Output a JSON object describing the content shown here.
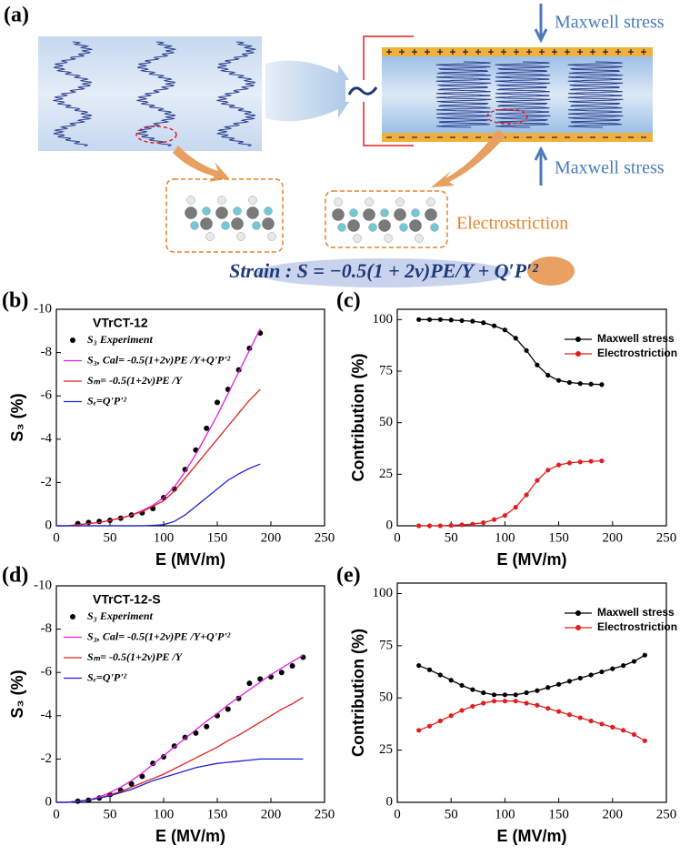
{
  "diagram": {
    "label": "(a)",
    "top_stress": "Maxwell stress",
    "bottom_stress": "Maxwell stress",
    "electrostriction": "Electrostriction",
    "equation": "Strain : S = −0.5(1 + 2ν)PE/Y + Q′P′²"
  },
  "chart_data": [
    {
      "type": "line",
      "panel_label": "(b)",
      "annotation": "VTrCT-12",
      "xlabel": "E (MV/m)",
      "ylabel": "S₃ (%)",
      "xlim": [
        0,
        250
      ],
      "xticks": [
        0,
        50,
        100,
        150,
        200,
        250
      ],
      "ylim": [
        0,
        -10
      ],
      "yticks": [
        0,
        -2,
        -4,
        -6,
        -8,
        -10
      ],
      "legend": "upper left",
      "series": [
        {
          "name": "S₃ Experiment",
          "mode": "markers",
          "color": "#000000",
          "x": [
            20,
            30,
            40,
            50,
            60,
            70,
            80,
            90,
            100,
            110,
            120,
            130,
            140,
            150,
            160,
            170,
            180,
            190
          ],
          "values": [
            -0.1,
            -0.15,
            -0.2,
            -0.25,
            -0.35,
            -0.5,
            -0.6,
            -0.8,
            -1.3,
            -1.7,
            -2.6,
            -3.5,
            -4.5,
            -5.7,
            -6.3,
            -7.2,
            -8.2,
            -8.9
          ]
        },
        {
          "name": "S₃, Cal= -0.5(1+2ν)PE /Y+Q'P'²",
          "mode": "lines",
          "color": "#e020e0",
          "x": [
            0,
            10,
            20,
            30,
            40,
            50,
            60,
            70,
            80,
            90,
            100,
            110,
            120,
            130,
            140,
            150,
            160,
            170,
            180,
            190
          ],
          "values": [
            0,
            0,
            -0.05,
            -0.1,
            -0.15,
            -0.25,
            -0.35,
            -0.5,
            -0.7,
            -0.95,
            -1.3,
            -1.8,
            -2.5,
            -3.3,
            -4.2,
            -5.1,
            -6.1,
            -7.1,
            -8.1,
            -9.1
          ]
        },
        {
          "name": "Sₘ= -0.5(1+2ν)PE /Y",
          "mode": "lines",
          "color": "#e02020",
          "x": [
            0,
            10,
            20,
            30,
            40,
            50,
            60,
            70,
            80,
            90,
            100,
            110,
            120,
            130,
            140,
            150,
            160,
            170,
            180,
            190
          ],
          "values": [
            0,
            0,
            -0.05,
            -0.1,
            -0.15,
            -0.25,
            -0.35,
            -0.5,
            -0.65,
            -0.9,
            -1.15,
            -1.6,
            -2.2,
            -2.8,
            -3.4,
            -4.0,
            -4.6,
            -5.2,
            -5.8,
            -6.3
          ]
        },
        {
          "name": "Sₑ=Q'P'²",
          "mode": "lines",
          "color": "#2020d0",
          "x": [
            0,
            10,
            20,
            30,
            40,
            50,
            60,
            70,
            80,
            90,
            100,
            110,
            120,
            130,
            140,
            150,
            160,
            170,
            180,
            190
          ],
          "values": [
            0,
            0,
            0,
            0,
            0,
            0,
            0,
            0,
            0,
            -0.02,
            -0.05,
            -0.2,
            -0.5,
            -0.9,
            -1.3,
            -1.7,
            -2.1,
            -2.4,
            -2.65,
            -2.85
          ]
        }
      ]
    },
    {
      "type": "line",
      "panel_label": "(c)",
      "xlabel": "E (MV/m)",
      "ylabel": "Contribution (%)",
      "xlim": [
        0,
        250
      ],
      "xticks": [
        0,
        50,
        100,
        150,
        200,
        250
      ],
      "ylim": [
        0,
        105
      ],
      "yticks": [
        0,
        25,
        50,
        75,
        100
      ],
      "legend": "upper right",
      "series": [
        {
          "name": "Maxwell stress",
          "mode": "lines+markers",
          "color": "#000000",
          "x": [
            20,
            30,
            40,
            50,
            60,
            70,
            80,
            90,
            100,
            110,
            120,
            130,
            140,
            150,
            160,
            170,
            180,
            190
          ],
          "values": [
            100,
            100,
            100,
            99.8,
            99.5,
            99.2,
            98.5,
            97,
            95,
            91,
            85,
            78,
            73,
            70.5,
            69.5,
            69,
            68.7,
            68.5
          ]
        },
        {
          "name": "Electrostriction",
          "mode": "lines+markers",
          "color": "#e02020",
          "x": [
            20,
            30,
            40,
            50,
            60,
            70,
            80,
            90,
            100,
            110,
            120,
            130,
            140,
            150,
            160,
            170,
            180,
            190
          ],
          "values": [
            0,
            0,
            0,
            0.2,
            0.5,
            0.8,
            1.5,
            3,
            5,
            9,
            15,
            22,
            27,
            29.5,
            30.5,
            31,
            31.3,
            31.5
          ]
        }
      ]
    },
    {
      "type": "line",
      "panel_label": "(d)",
      "annotation": "VTrCT-12-S",
      "xlabel": "E (MV/m)",
      "ylabel": "S₃ (%)",
      "xlim": [
        0,
        250
      ],
      "xticks": [
        0,
        50,
        100,
        150,
        200,
        250
      ],
      "ylim": [
        0,
        -10
      ],
      "yticks": [
        0,
        -2,
        -4,
        -6,
        -8,
        -10
      ],
      "legend": "upper left",
      "series": [
        {
          "name": "S₃ Experiment",
          "mode": "markers",
          "color": "#000000",
          "x": [
            20,
            30,
            40,
            50,
            60,
            70,
            80,
            90,
            100,
            110,
            120,
            130,
            140,
            150,
            160,
            170,
            180,
            190,
            200,
            210,
            220,
            230
          ],
          "values": [
            -0.05,
            -0.1,
            -0.2,
            -0.35,
            -0.55,
            -0.85,
            -1.2,
            -1.8,
            -2.1,
            -2.6,
            -3.0,
            -3.2,
            -3.5,
            -4.0,
            -4.3,
            -4.8,
            -5.5,
            -5.7,
            -5.8,
            -6.0,
            -6.3,
            -6.7
          ]
        },
        {
          "name": "S₃, Cal= -0.5(1+2ν)PE /Y+Q'P'²",
          "mode": "lines",
          "color": "#e020e0",
          "x": [
            0,
            10,
            20,
            30,
            40,
            50,
            60,
            70,
            80,
            90,
            100,
            110,
            120,
            130,
            140,
            150,
            160,
            170,
            180,
            190,
            200,
            210,
            220,
            230
          ],
          "values": [
            0,
            0,
            -0.05,
            -0.1,
            -0.25,
            -0.45,
            -0.7,
            -1.0,
            -1.35,
            -1.75,
            -2.15,
            -2.55,
            -2.95,
            -3.35,
            -3.75,
            -4.1,
            -4.5,
            -4.85,
            -5.2,
            -5.55,
            -5.9,
            -6.2,
            -6.5,
            -6.8
          ]
        },
        {
          "name": "Sₘ= -0.5(1+2ν)PE /Y",
          "mode": "lines",
          "color": "#e02020",
          "x": [
            0,
            10,
            20,
            30,
            40,
            50,
            60,
            70,
            80,
            90,
            100,
            110,
            120,
            130,
            140,
            150,
            160,
            170,
            180,
            190,
            200,
            210,
            220,
            230
          ],
          "values": [
            0,
            0,
            -0.05,
            -0.1,
            -0.2,
            -0.35,
            -0.5,
            -0.7,
            -0.9,
            -1.1,
            -1.3,
            -1.55,
            -1.8,
            -2.05,
            -2.3,
            -2.55,
            -2.85,
            -3.1,
            -3.4,
            -3.7,
            -4.0,
            -4.3,
            -4.55,
            -4.85
          ]
        },
        {
          "name": "Sₑ=Q'P'²",
          "mode": "lines",
          "color": "#2020d0",
          "x": [
            0,
            10,
            20,
            30,
            40,
            50,
            60,
            70,
            80,
            90,
            100,
            110,
            120,
            130,
            140,
            150,
            160,
            170,
            180,
            190,
            200,
            210,
            220,
            230
          ],
          "values": [
            0,
            0,
            -0.05,
            -0.1,
            -0.2,
            -0.3,
            -0.45,
            -0.6,
            -0.8,
            -1.0,
            -1.15,
            -1.3,
            -1.45,
            -1.6,
            -1.7,
            -1.8,
            -1.85,
            -1.9,
            -1.95,
            -2.0,
            -2.0,
            -2.0,
            -2.0,
            -2.0
          ]
        }
      ]
    },
    {
      "type": "line",
      "panel_label": "(e)",
      "xlabel": "E (MV/m)",
      "ylabel": "Contribution (%)",
      "xlim": [
        0,
        250
      ],
      "xticks": [
        0,
        50,
        100,
        150,
        200,
        250
      ],
      "ylim": [
        0,
        105
      ],
      "yticks": [
        0,
        25,
        50,
        75,
        100
      ],
      "legend": "upper right",
      "series": [
        {
          "name": "Maxwell stress",
          "mode": "lines+markers",
          "color": "#000000",
          "x": [
            20,
            30,
            40,
            50,
            60,
            70,
            80,
            90,
            100,
            110,
            120,
            130,
            140,
            150,
            160,
            170,
            180,
            190,
            200,
            210,
            220,
            230
          ],
          "values": [
            65.5,
            63.5,
            61,
            58.5,
            56,
            54,
            52.5,
            51.5,
            51.5,
            51.5,
            52.5,
            53.5,
            55,
            56.5,
            58,
            59.5,
            61,
            62.5,
            64,
            65.5,
            67.5,
            70.5
          ]
        },
        {
          "name": "Electrostriction",
          "mode": "lines+markers",
          "color": "#e02020",
          "x": [
            20,
            30,
            40,
            50,
            60,
            70,
            80,
            90,
            100,
            110,
            120,
            130,
            140,
            150,
            160,
            170,
            180,
            190,
            200,
            210,
            220,
            230
          ],
          "values": [
            34.5,
            36.5,
            39,
            41.5,
            44,
            46,
            47.5,
            48.5,
            48.5,
            48.5,
            47.5,
            46.5,
            45,
            43.5,
            42,
            40.5,
            39,
            37.5,
            36,
            34.5,
            32.5,
            29.5
          ]
        }
      ]
    }
  ]
}
